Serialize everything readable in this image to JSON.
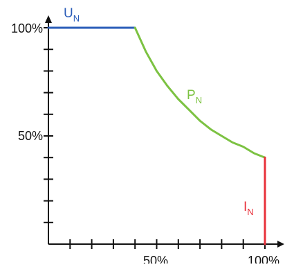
{
  "chart_data": {
    "type": "line",
    "x_ticks": [
      "50%",
      "100%"
    ],
    "y_ticks": [
      "100%",
      "50%"
    ],
    "xlim": [
      0,
      100
    ],
    "ylim": [
      0,
      100
    ],
    "x_minor_tick_step": 10,
    "y_minor_tick_step": 10,
    "grid": false,
    "series": [
      {
        "name": "U",
        "subscript": "N",
        "color": "#2a5cb8",
        "x": [
          0,
          40
        ],
        "y": [
          100,
          100
        ]
      },
      {
        "name": "P",
        "subscript": "N",
        "color": "#7cc242",
        "x": [
          40,
          45,
          50,
          55,
          60,
          65,
          70,
          75,
          80,
          85,
          90,
          95,
          100
        ],
        "y": [
          100,
          89,
          80,
          73,
          67,
          62,
          57,
          53,
          50,
          47,
          45,
          42,
          40
        ]
      },
      {
        "name": "I",
        "subscript": "N",
        "color": "#e8303a",
        "x": [
          100,
          100
        ],
        "y": [
          40,
          0
        ]
      }
    ]
  }
}
